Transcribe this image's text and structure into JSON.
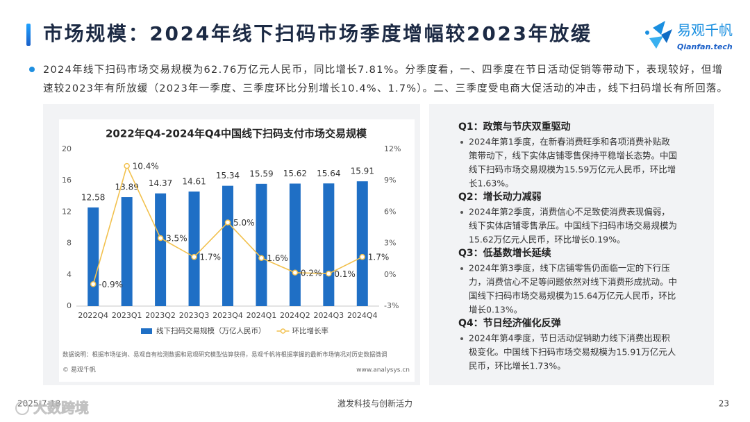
{
  "header": {
    "title": "市场规模：2024年线下扫码市场季度增幅较2023年放缓",
    "logo": {
      "name": "易观千帆",
      "url": "Qianfan.tech"
    }
  },
  "summary": [
    "2024年线下扫码市场交易规模为62.76万亿元人民币，同比增长7.81%。分季度看，一、四季度在节日活动促销等带动下，表现较好，但增",
    "速较2023年有所放缓（2023年一季度、三季度环比分别增长10.4%、1.7%）。二、三季度受电商大促活动的冲击，线下扫码增长有所回落。"
  ],
  "chart_data": {
    "type": "bar",
    "title": "2022年Q4-2024年Q4中国线下扫码支付市场交易规模",
    "categories": [
      "2022Q4",
      "2023Q1",
      "2023Q2",
      "2023Q3",
      "2023Q4",
      "2024Q1",
      "2024Q2",
      "2024Q3",
      "2024Q4"
    ],
    "series": [
      {
        "name": "线下扫码交易规模（万亿人民币）",
        "type": "bar",
        "color": "#1f6fc5",
        "values": [
          12.58,
          13.89,
          14.37,
          14.61,
          15.34,
          15.59,
          15.62,
          15.64,
          15.91
        ]
      },
      {
        "name": "环比增长率",
        "type": "line",
        "axis": "y2",
        "color": "#f2c14e",
        "values": [
          -0.9,
          10.4,
          3.5,
          1.7,
          5.0,
          1.6,
          0.2,
          0.1,
          1.7
        ],
        "value_labels": [
          "-0.9%",
          "10.4%",
          "3.5%",
          "1.7%",
          "5.0%",
          "1.6%",
          "0.2%",
          "0.1%",
          "1.7%"
        ]
      }
    ],
    "ylim": [
      0,
      20
    ],
    "yticks": [
      0,
      4,
      8,
      12,
      16,
      20
    ],
    "y2lim": [
      -3,
      12
    ],
    "y2ticks": [
      {
        "value": -3,
        "label": "-3%"
      },
      {
        "value": 0,
        "label": "0%"
      },
      {
        "value": 3,
        "label": "3%"
      },
      {
        "value": 6,
        "label": "6%"
      },
      {
        "value": 9,
        "label": "9%"
      },
      {
        "value": 12,
        "label": "12%"
      }
    ],
    "grid": false,
    "legend": "bottom",
    "source_note": "数据说明：根据市场征询、易观自有检测数据和易观研究模型估算获得，易观千帆将根据掌握的最新市场情况对历史数据微调",
    "copyright": "© 易观千帆",
    "website": "www.analysys.cn"
  },
  "insights": [
    {
      "heading": "Q1：政策与节庆双重驱动",
      "lines": [
        "2024年第1季度，在新春消费旺季和各项消费补贴政",
        "策带动下，线下实体店铺零售保持平稳增长态势。中国",
        "线下扫码市场交易规模为15.59万亿元人民币，环比增",
        "长1.63%。"
      ]
    },
    {
      "heading": "Q2：增长动力减弱",
      "lines": [
        "2024年第2季度，消费信心不足致使消费表现偏弱，",
        "线下实体店铺零售承压。中国线下扫码市场交易规模为",
        "15.62万亿元人民币，环比增长0.19%。"
      ]
    },
    {
      "heading": "Q3：低基数增长延续",
      "lines": [
        "2024年第3季度，线下店铺零售仍面临一定的下行压",
        "力，消费信心不足等问题依然对线下消费形成扰动。中",
        "国线下扫码市场交易规模为15.64万亿元人民币，环比",
        "增长0.13%。"
      ]
    },
    {
      "heading": "Q4：节日经济催化反弹",
      "lines": [
        "2024年第4季度，节日活动促销助力线下消费出现积",
        "极变化。中国线下扫码市场交易规模为15.91万亿元人",
        "民币，环比增长1.73%。"
      ]
    }
  ],
  "footer": {
    "date": "2025-7-18",
    "slogan": "激发科技与创新活力",
    "page": "23",
    "watermark": "大数跨境"
  }
}
